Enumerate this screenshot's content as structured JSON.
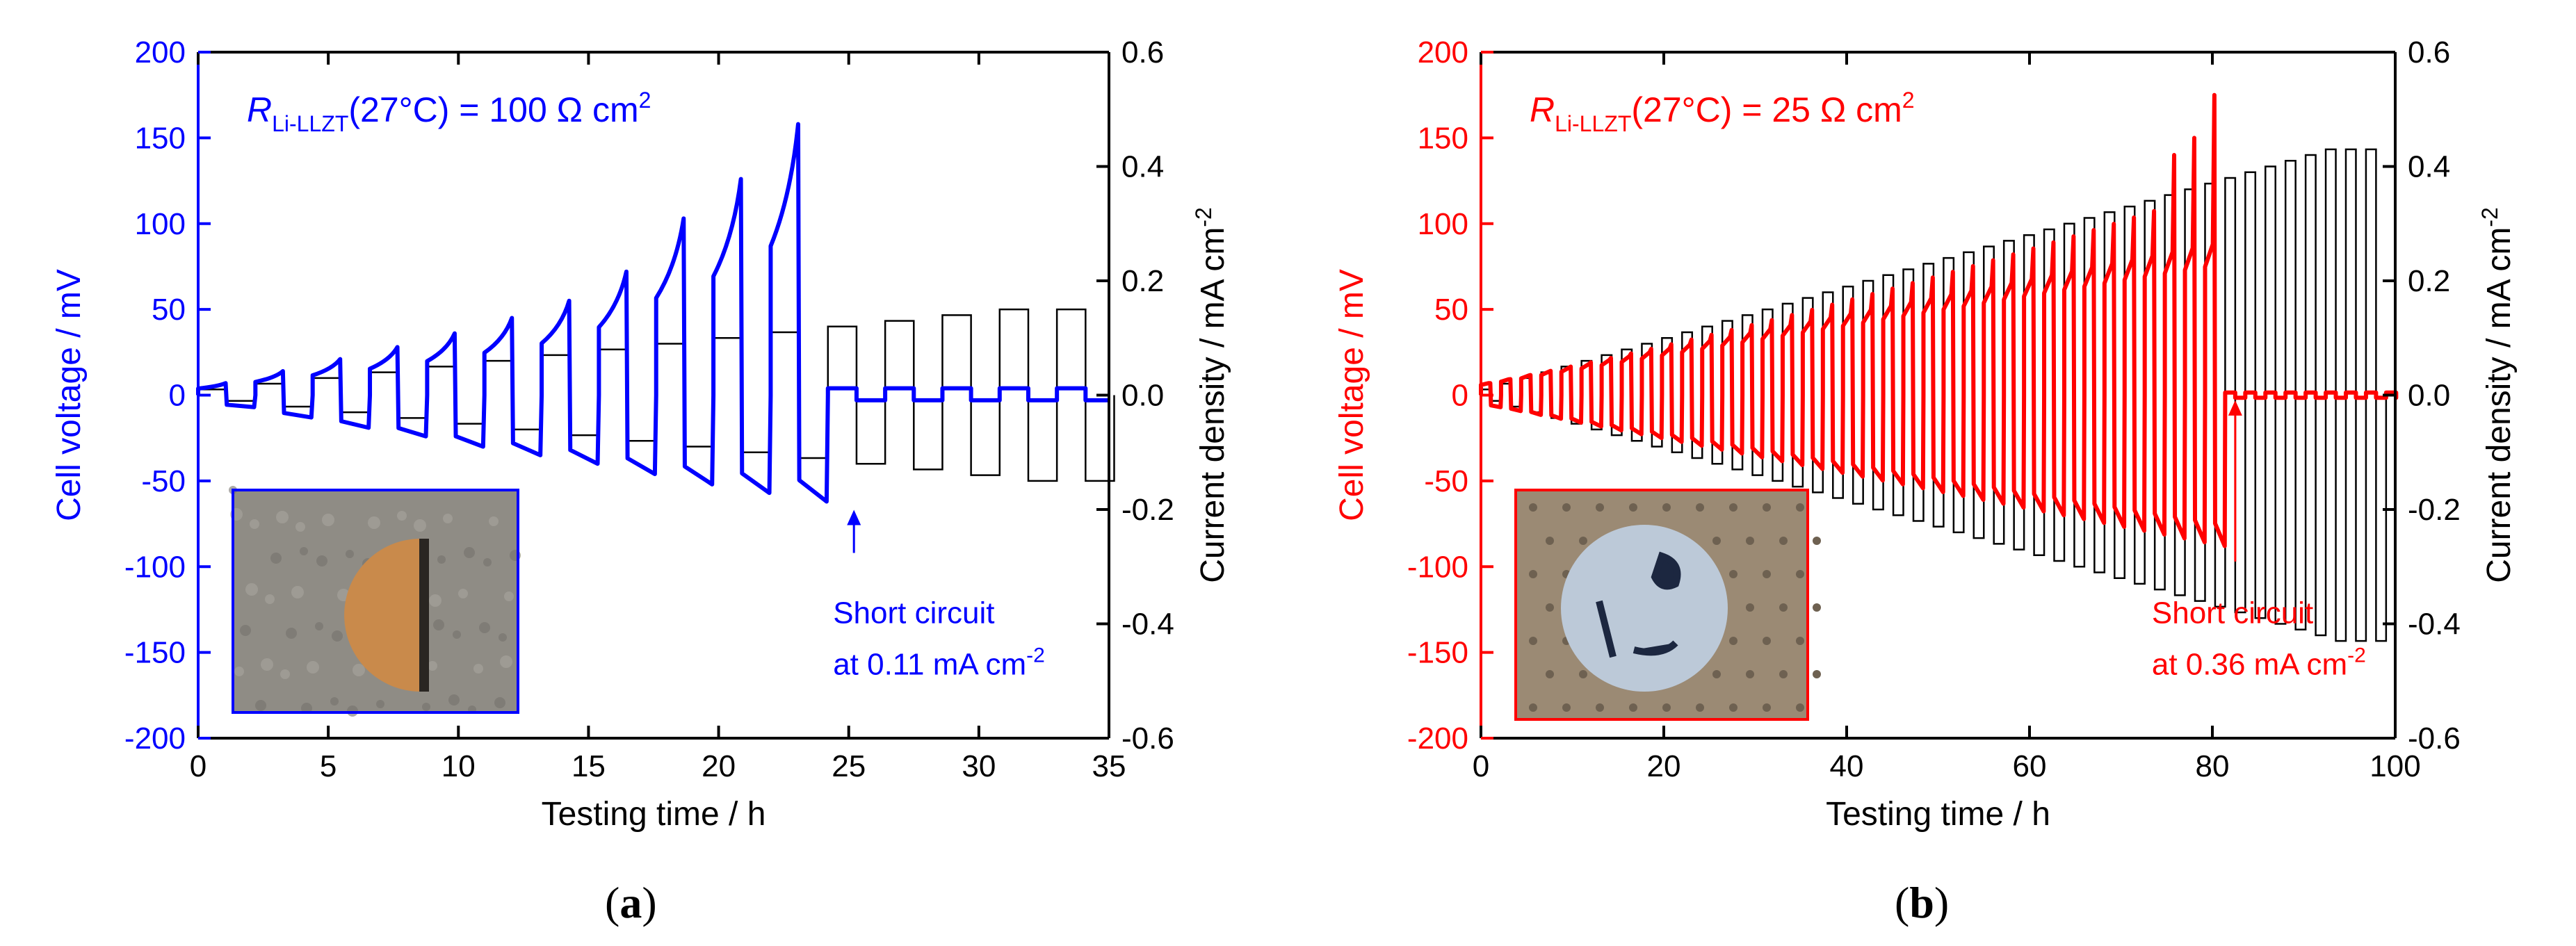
{
  "chart_data": [
    {
      "type": "line",
      "panel_label": "a",
      "title_main": "R",
      "title_sub": "Li-LLZT",
      "title_rest": "(27°C) = 100 Ω cm",
      "title_sup": "2",
      "xlabel": "Testing time / h",
      "ylabel": "Cell voltage / mV",
      "y2label_main": "Current density / mA cm",
      "y2label_sup": "-2",
      "xlim": [
        0,
        35
      ],
      "ylim": [
        -200,
        200
      ],
      "y2lim": [
        -0.6,
        0.6
      ],
      "xticks": [
        "0",
        "5",
        "10",
        "15",
        "20",
        "25",
        "30",
        "35"
      ],
      "yticks": [
        "-200",
        "-150",
        "-100",
        "-50",
        "0",
        "50",
        "100",
        "150",
        "200"
      ],
      "y2ticks": [
        "-0.6",
        "-0.4",
        "-0.2",
        "0.0",
        "0.2",
        "0.4",
        "0.6"
      ],
      "annotation_line1": "Short circuit",
      "annotation_line2": "at 0.11 mA cm",
      "annotation_sup": "-2",
      "short_circuit_time_h": 25.2,
      "short_circuit_current": 0.11,
      "voltage_color": "#0000ff",
      "current_color": "#000000",
      "series": [
        {
          "name": "Cell voltage",
          "axis": "left",
          "cycles": [
            {
              "start": 0.0,
              "peak_pos": 7,
              "peak_neg": -7
            },
            {
              "start": 2.2,
              "peak_pos": 14,
              "peak_neg": -13
            },
            {
              "start": 4.4,
              "peak_pos": 21,
              "peak_neg": -19
            },
            {
              "start": 6.6,
              "peak_pos": 28,
              "peak_neg": -24
            },
            {
              "start": 8.8,
              "peak_pos": 36,
              "peak_neg": -30
            },
            {
              "start": 11.0,
              "peak_pos": 45,
              "peak_neg": -35
            },
            {
              "start": 13.2,
              "peak_pos": 55,
              "peak_neg": -40
            },
            {
              "start": 15.4,
              "peak_pos": 72,
              "peak_neg": -46
            },
            {
              "start": 17.6,
              "peak_pos": 103,
              "peak_neg": -52
            },
            {
              "start": 19.8,
              "peak_pos": 126,
              "peak_neg": -57
            },
            {
              "start": 22.0,
              "peak_pos": 158,
              "peak_neg": -62
            }
          ]
        },
        {
          "name": "Current density",
          "axis": "right",
          "cycles": [
            {
              "start": 0.0,
              "value": 0.01
            },
            {
              "start": 2.2,
              "value": 0.02
            },
            {
              "start": 4.4,
              "value": 0.03
            },
            {
              "start": 6.6,
              "value": 0.04
            },
            {
              "start": 8.8,
              "value": 0.05
            },
            {
              "start": 11.0,
              "value": 0.06
            },
            {
              "start": 13.2,
              "value": 0.07
            },
            {
              "start": 15.4,
              "value": 0.08
            },
            {
              "start": 17.6,
              "value": 0.09
            },
            {
              "start": 19.8,
              "value": 0.1
            },
            {
              "start": 22.0,
              "value": 0.11
            },
            {
              "start": 24.2,
              "value": 0.12
            },
            {
              "start": 26.4,
              "value": 0.13
            },
            {
              "start": 28.6,
              "value": 0.14
            },
            {
              "start": 30.8,
              "value": 0.15
            },
            {
              "start": 33.0,
              "value": 0.15
            }
          ]
        }
      ],
      "inset_description": "photo"
    },
    {
      "type": "line",
      "panel_label": "b",
      "title_main": "R",
      "title_sub": "Li-LLZT",
      "title_rest": "(27°C) = 25 Ω cm",
      "title_sup": "2",
      "xlabel": "Testing time / h",
      "ylabel": "Cell voltage / mV",
      "y2label_main": "Current density / mA cm",
      "y2label_sup": "-2",
      "xlim": [
        0,
        100
      ],
      "ylim": [
        -200,
        200
      ],
      "y2lim": [
        -0.6,
        0.6
      ],
      "xticks": [
        "0",
        "20",
        "40",
        "60",
        "80",
        "100"
      ],
      "yticks": [
        "-200",
        "-150",
        "-100",
        "-50",
        "0",
        "50",
        "100",
        "150",
        "200"
      ],
      "y2ticks": [
        "-0.6",
        "-0.4",
        "-0.2",
        "0.0",
        "0.2",
        "0.4",
        "0.6"
      ],
      "annotation_line1": "Short circuit",
      "annotation_line2": "at 0.36 mA cm",
      "annotation_sup": "-2",
      "short_circuit_time_h": 82.5,
      "short_circuit_current": 0.36,
      "voltage_color": "#ff0000",
      "current_color": "#000000",
      "cycle_period_h": 2.2,
      "current_step_per_cycle": 0.01,
      "voltage_scale_start": 7,
      "voltage_scale_end": 88,
      "final_spike": 175,
      "inset_description": "photo"
    }
  ]
}
